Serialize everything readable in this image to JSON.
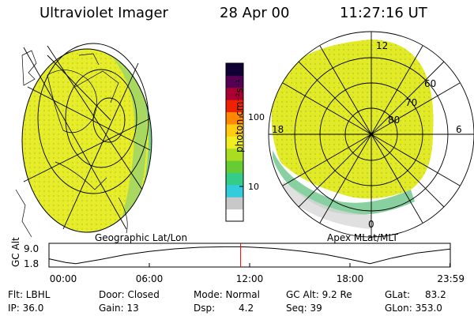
{
  "header": {
    "instrument": "Ultraviolet Imager",
    "date": "28 Apr 00",
    "time": "11:27:16 UT"
  },
  "panels": {
    "geo_label": "Geographic Lat/Lon",
    "apex_label": "Apex MLat/MLT",
    "mlt_labels": [
      "12",
      "18",
      "6",
      "0"
    ],
    "mlat_labels": [
      "60",
      "70",
      "80"
    ]
  },
  "colorbar": {
    "label": "photon cm⁻²s⁻¹",
    "ticks": [
      "100",
      "10"
    ],
    "scale": "log",
    "colors": [
      "#ffffff",
      "#c8c8c8",
      "#33ccdd",
      "#33cc88",
      "#66cc33",
      "#aadd22",
      "#eeee22",
      "#ffcc11",
      "#ff8800",
      "#ee2200",
      "#aa0033",
      "#550055",
      "#110033"
    ]
  },
  "altitude_plot": {
    "ylabel": "GC Alt",
    "yticks": [
      "9.0",
      "1.8"
    ],
    "xticks": [
      "00:00",
      "06:00",
      "12:00",
      "18:00",
      "23:59"
    ],
    "current_marker_color": "#ff0000"
  },
  "chart_data": {
    "type": "line",
    "title": "",
    "xlabel": "",
    "ylabel": "GC Alt",
    "x_unit": "hours UT",
    "ylim": [
      1.8,
      9.0
    ],
    "xlim": [
      0,
      24
    ],
    "x": [
      0,
      1,
      1.6,
      3,
      4.5,
      6,
      7.5,
      9,
      10.5,
      11.46,
      12,
      13.5,
      15,
      16.5,
      18,
      19.2,
      20.5,
      22,
      23.98
    ],
    "y": [
      4.0,
      2.4,
      1.9,
      3.6,
      5.7,
      7.2,
      8.3,
      9.0,
      9.2,
      9.2,
      9.1,
      8.5,
      7.4,
      5.9,
      3.8,
      1.9,
      4.3,
      6.5,
      8.2
    ],
    "current_x": 11.46
  },
  "footer": {
    "flt": "Flt: LBHL",
    "ip": "IP: 36.0",
    "door": "Door: Closed",
    "gain": "Gain: 13",
    "mode": "Mode: Normal",
    "dsp": "Dsp:",
    "dsp_val": "4.2",
    "gcalt": "GC Alt: 9.2 Re",
    "seq": "Seq: 39",
    "glat": "GLat:",
    "glat_val": "83.2",
    "glon": "GLon: 353.0"
  }
}
